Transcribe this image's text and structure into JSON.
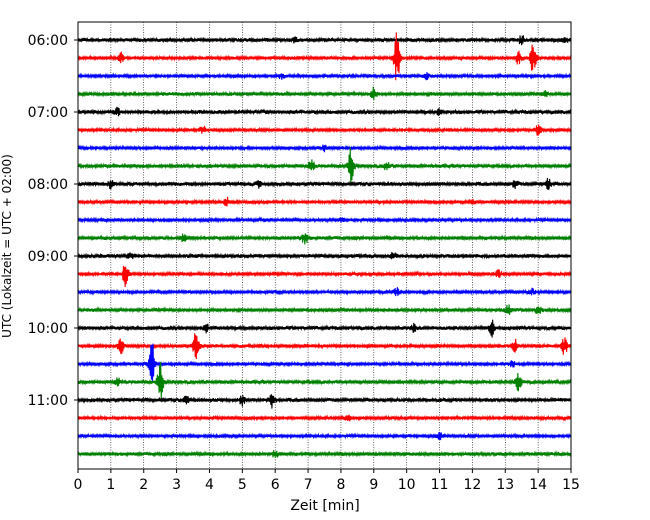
{
  "chart_data": {
    "type": "line",
    "title": "",
    "xlabel": "Zeit  [min]",
    "ylabel": "UTC (Lokalzeit = UTC + 02:00)",
    "xlim": [
      0,
      15
    ],
    "x_ticks": [
      "0",
      "1",
      "2",
      "3",
      "4",
      "5",
      "6",
      "7",
      "8",
      "9",
      "10",
      "11",
      "12",
      "13",
      "14",
      "15"
    ],
    "y_ticks": [
      "06:00",
      "07:00",
      "08:00",
      "09:00",
      "10:00",
      "11:00"
    ],
    "grid": {
      "x": true,
      "y": false,
      "style": "dotted"
    },
    "trace_interval_min": 15,
    "colors": [
      "#000000",
      "#ff0000",
      "#0000ff",
      "#008000"
    ],
    "traces": [
      {
        "start": "06:00",
        "color": "#000000",
        "noise": 2.2,
        "events": [
          {
            "t": 6.6,
            "amp": 3
          },
          {
            "t": 13.5,
            "amp": 4
          },
          {
            "t": 14.8,
            "amp": 3
          }
        ]
      },
      {
        "start": "06:15",
        "color": "#ff0000",
        "noise": 1.8,
        "events": [
          {
            "t": 1.3,
            "amp": 5
          },
          {
            "t": 9.7,
            "amp": 26
          },
          {
            "t": 13.4,
            "amp": 6
          },
          {
            "t": 13.85,
            "amp": 16
          }
        ]
      },
      {
        "start": "06:30",
        "color": "#0000ff",
        "noise": 1.8,
        "events": [
          {
            "t": 6.2,
            "amp": 3
          },
          {
            "t": 10.6,
            "amp": 3
          }
        ]
      },
      {
        "start": "06:45",
        "color": "#008000",
        "noise": 2.0,
        "events": [
          {
            "t": 9.0,
            "amp": 6
          },
          {
            "t": 14.2,
            "amp": 3
          }
        ]
      },
      {
        "start": "07:00",
        "color": "#000000",
        "noise": 2.2,
        "events": [
          {
            "t": 1.2,
            "amp": 4
          },
          {
            "t": 11.0,
            "amp": 3
          }
        ]
      },
      {
        "start": "07:15",
        "color": "#ff0000",
        "noise": 1.8,
        "events": [
          {
            "t": 3.8,
            "amp": 4
          },
          {
            "t": 14.0,
            "amp": 6
          }
        ]
      },
      {
        "start": "07:30",
        "color": "#0000ff",
        "noise": 1.8,
        "events": [
          {
            "t": 7.5,
            "amp": 3
          }
        ]
      },
      {
        "start": "07:45",
        "color": "#008000",
        "noise": 2.0,
        "events": [
          {
            "t": 7.1,
            "amp": 7
          },
          {
            "t": 8.3,
            "amp": 18
          },
          {
            "t": 9.4,
            "amp": 5
          }
        ]
      },
      {
        "start": "08:00",
        "color": "#000000",
        "noise": 2.2,
        "events": [
          {
            "t": 1.0,
            "amp": 5
          },
          {
            "t": 5.5,
            "amp": 3
          },
          {
            "t": 13.3,
            "amp": 4
          },
          {
            "t": 14.3,
            "amp": 5
          }
        ]
      },
      {
        "start": "08:15",
        "color": "#ff0000",
        "noise": 1.8,
        "events": [
          {
            "t": 4.5,
            "amp": 6
          },
          {
            "t": 12.0,
            "amp": 3
          }
        ]
      },
      {
        "start": "08:30",
        "color": "#0000ff",
        "noise": 1.8,
        "events": [
          {
            "t": 8.0,
            "amp": 2
          }
        ]
      },
      {
        "start": "08:45",
        "color": "#008000",
        "noise": 2.0,
        "events": [
          {
            "t": 3.2,
            "amp": 4
          },
          {
            "t": 6.9,
            "amp": 6
          }
        ]
      },
      {
        "start": "09:00",
        "color": "#000000",
        "noise": 2.2,
        "events": [
          {
            "t": 1.6,
            "amp": 3
          },
          {
            "t": 9.6,
            "amp": 3
          }
        ]
      },
      {
        "start": "09:15",
        "color": "#ff0000",
        "noise": 1.8,
        "events": [
          {
            "t": 1.45,
            "amp": 13
          },
          {
            "t": 12.8,
            "amp": 4
          }
        ]
      },
      {
        "start": "09:30",
        "color": "#0000ff",
        "noise": 1.8,
        "events": [
          {
            "t": 9.7,
            "amp": 4
          },
          {
            "t": 13.8,
            "amp": 3
          }
        ]
      },
      {
        "start": "09:45",
        "color": "#008000",
        "noise": 2.0,
        "events": [
          {
            "t": 13.1,
            "amp": 5
          },
          {
            "t": 14.0,
            "amp": 4
          }
        ]
      },
      {
        "start": "10:00",
        "color": "#000000",
        "noise": 2.2,
        "events": [
          {
            "t": 3.9,
            "amp": 4
          },
          {
            "t": 10.2,
            "amp": 4
          },
          {
            "t": 12.6,
            "amp": 8
          }
        ]
      },
      {
        "start": "10:15",
        "color": "#ff0000",
        "noise": 2.0,
        "events": [
          {
            "t": 1.3,
            "amp": 8
          },
          {
            "t": 3.6,
            "amp": 16
          },
          {
            "t": 13.3,
            "amp": 6
          },
          {
            "t": 14.8,
            "amp": 9
          }
        ]
      },
      {
        "start": "10:30",
        "color": "#0000ff",
        "noise": 1.8,
        "events": [
          {
            "t": 2.25,
            "amp": 22
          },
          {
            "t": 13.2,
            "amp": 3
          }
        ]
      },
      {
        "start": "10:45",
        "color": "#008000",
        "noise": 2.0,
        "events": [
          {
            "t": 1.2,
            "amp": 4
          },
          {
            "t": 2.5,
            "amp": 20
          },
          {
            "t": 13.4,
            "amp": 9
          }
        ]
      },
      {
        "start": "11:00",
        "color": "#000000",
        "noise": 2.2,
        "events": [
          {
            "t": 3.3,
            "amp": 4
          },
          {
            "t": 5.0,
            "amp": 5
          },
          {
            "t": 5.9,
            "amp": 7
          }
        ]
      },
      {
        "start": "11:15",
        "color": "#ff0000",
        "noise": 1.8,
        "events": [
          {
            "t": 8.2,
            "amp": 3
          }
        ]
      },
      {
        "start": "11:30",
        "color": "#0000ff",
        "noise": 1.8,
        "events": [
          {
            "t": 11.0,
            "amp": 4
          }
        ]
      },
      {
        "start": "11:45",
        "color": "#008000",
        "noise": 2.0,
        "events": [
          {
            "t": 6.0,
            "amp": 3
          }
        ]
      }
    ]
  }
}
